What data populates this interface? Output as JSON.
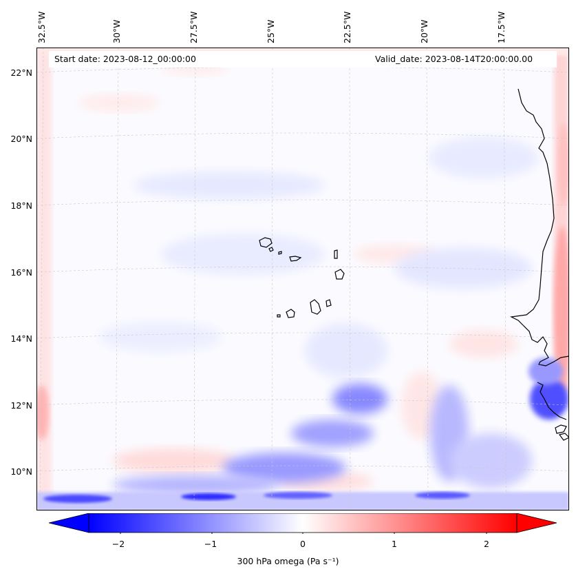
{
  "map": {
    "lon_labels": [
      "32.5°W",
      "30°W",
      "27.5°W",
      "25°W",
      "22.5°W",
      "20°W",
      "17.5°W"
    ],
    "lat_labels": [
      "22°N",
      "20°N",
      "18°N",
      "16°N",
      "14°N",
      "12°N",
      "10°N"
    ],
    "start_date": "Start date: 2023-08-12_00:00:00",
    "valid_date": "Valid_date: 2023-08-14T20:00:00.00",
    "field": "300 hPa omega",
    "colormap": "bwr",
    "colors": {
      "negative": "#0000ff",
      "zero": "#ffffff",
      "positive": "#ff0000",
      "coastline": "#000000"
    }
  },
  "colorbar": {
    "ticks": [
      "−2",
      "−1",
      "0",
      "1",
      "2"
    ],
    "tick_values": [
      -2,
      -1,
      0,
      1,
      2
    ],
    "range": [
      -2.5,
      2.5
    ],
    "extend": "both",
    "label": "300 hPa omega (Pa s⁻¹)"
  }
}
